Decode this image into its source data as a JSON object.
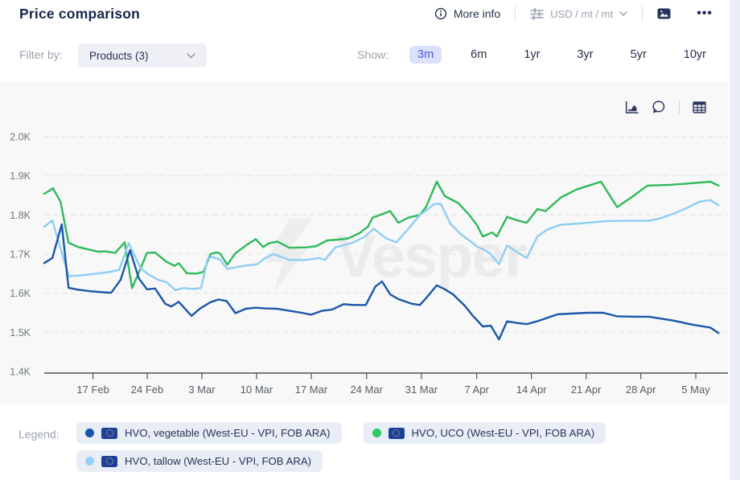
{
  "header": {
    "title": "Price comparison",
    "more_info_label": "More info",
    "unit_selector_label": "USD / mt / mt"
  },
  "filter": {
    "label": "Filter by:",
    "products_dropdown_label": "Products (3)"
  },
  "show": {
    "label": "Show:",
    "options": [
      "3m",
      "6m",
      "1yr",
      "3yr",
      "5yr",
      "10yr"
    ],
    "selected": "3m",
    "active_bg": "#dce1fb",
    "active_text": "#4b5bd7"
  },
  "watermark_text": "Vesper",
  "legend": {
    "label": "Legend:",
    "items": [
      {
        "label": "HVO, vegetable (West-EU - VPI, FOB ARA)",
        "dot_color": "#1656a8"
      },
      {
        "label": "HVO, UCO (West-EU - VPI, FOB ARA)",
        "dot_color": "#2ecc5e"
      },
      {
        "label": "HVO, tallow (West-EU - VPI, FOB ARA)",
        "dot_color": "#93d2f3"
      }
    ]
  },
  "chart_data": {
    "type": "line",
    "unit": "USD / mt / mt",
    "ylim": [
      1400,
      2000
    ],
    "grid": "horizontal-dashed",
    "legend_position": "bottom",
    "y_ticks": [
      {
        "label": "2.0K",
        "value": 2000
      },
      {
        "label": "1.9K",
        "value": 1900
      },
      {
        "label": "1.8K",
        "value": 1800
      },
      {
        "label": "1.7K",
        "value": 1700
      },
      {
        "label": "1.6K",
        "value": 1600
      },
      {
        "label": "1.5K",
        "value": 1500
      },
      {
        "label": "1.4K",
        "value": 1400
      }
    ],
    "x_ticks": [
      {
        "label": "17 Feb",
        "f": 0.0722
      },
      {
        "label": "24 Feb",
        "f": 0.1524
      },
      {
        "label": "3 Mar",
        "f": 0.2333
      },
      {
        "label": "10 Mar",
        "f": 0.3143
      },
      {
        "label": "17 Mar",
        "f": 0.3952
      },
      {
        "label": "24 Mar",
        "f": 0.477
      },
      {
        "label": "31 Mar",
        "f": 0.5583
      },
      {
        "label": "7 Apr",
        "f": 0.6401
      },
      {
        "label": "14 Apr",
        "f": 0.7211
      },
      {
        "label": "21 Apr",
        "f": 0.802
      },
      {
        "label": "28 Apr",
        "f": 0.883
      },
      {
        "label": "5 May",
        "f": 0.9643
      }
    ],
    "series": [
      {
        "name": "HVO, vegetable (West-EU - VPI, FOB ARA)",
        "color": "#1a56a8",
        "points": [
          [
            0.0,
            1677
          ],
          [
            0.012,
            1690
          ],
          [
            0.026,
            1776
          ],
          [
            0.036,
            1614
          ],
          [
            0.05,
            1609
          ],
          [
            0.068,
            1605
          ],
          [
            0.083,
            1603
          ],
          [
            0.099,
            1601
          ],
          [
            0.113,
            1634
          ],
          [
            0.127,
            1710
          ],
          [
            0.14,
            1638
          ],
          [
            0.152,
            1610
          ],
          [
            0.164,
            1612
          ],
          [
            0.179,
            1573
          ],
          [
            0.188,
            1566
          ],
          [
            0.199,
            1578
          ],
          [
            0.218,
            1542
          ],
          [
            0.23,
            1560
          ],
          [
            0.246,
            1577
          ],
          [
            0.258,
            1584
          ],
          [
            0.27,
            1580
          ],
          [
            0.283,
            1549
          ],
          [
            0.298,
            1560
          ],
          [
            0.313,
            1563
          ],
          [
            0.327,
            1561
          ],
          [
            0.345,
            1560
          ],
          [
            0.363,
            1555
          ],
          [
            0.381,
            1550
          ],
          [
            0.395,
            1545
          ],
          [
            0.411,
            1555
          ],
          [
            0.426,
            1558
          ],
          [
            0.443,
            1572
          ],
          [
            0.458,
            1570
          ],
          [
            0.476,
            1570
          ],
          [
            0.49,
            1617
          ],
          [
            0.5,
            1630
          ],
          [
            0.512,
            1597
          ],
          [
            0.524,
            1585
          ],
          [
            0.544,
            1573
          ],
          [
            0.556,
            1570
          ],
          [
            0.565,
            1587
          ],
          [
            0.581,
            1620
          ],
          [
            0.593,
            1610
          ],
          [
            0.605,
            1597
          ],
          [
            0.623,
            1567
          ],
          [
            0.633,
            1545
          ],
          [
            0.649,
            1515
          ],
          [
            0.661,
            1517
          ],
          [
            0.673,
            1482
          ],
          [
            0.685,
            1528
          ],
          [
            0.7,
            1524
          ],
          [
            0.714,
            1521
          ],
          [
            0.729,
            1528
          ],
          [
            0.76,
            1546
          ],
          [
            0.78,
            1548
          ],
          [
            0.804,
            1550
          ],
          [
            0.827,
            1550
          ],
          [
            0.848,
            1541
          ],
          [
            0.875,
            1540
          ],
          [
            0.895,
            1540
          ],
          [
            0.931,
            1530
          ],
          [
            0.958,
            1520
          ],
          [
            0.986,
            1512
          ],
          [
            0.998,
            1498
          ]
        ]
      },
      {
        "name": "HVO, tallow (West-EU - VPI, FOB ARA)",
        "color": "#8ecdf2",
        "points": [
          [
            0.0,
            1770
          ],
          [
            0.012,
            1786
          ],
          [
            0.024,
            1715
          ],
          [
            0.036,
            1644
          ],
          [
            0.051,
            1645
          ],
          [
            0.068,
            1648
          ],
          [
            0.083,
            1651
          ],
          [
            0.099,
            1655
          ],
          [
            0.111,
            1660
          ],
          [
            0.125,
            1728
          ],
          [
            0.143,
            1663
          ],
          [
            0.155,
            1647
          ],
          [
            0.169,
            1634
          ],
          [
            0.181,
            1628
          ],
          [
            0.194,
            1608
          ],
          [
            0.206,
            1613
          ],
          [
            0.22,
            1611
          ],
          [
            0.232,
            1613
          ],
          [
            0.242,
            1688
          ],
          [
            0.248,
            1693
          ],
          [
            0.26,
            1686
          ],
          [
            0.271,
            1662
          ],
          [
            0.283,
            1666
          ],
          [
            0.3,
            1671
          ],
          [
            0.315,
            1674
          ],
          [
            0.327,
            1690
          ],
          [
            0.339,
            1700
          ],
          [
            0.363,
            1685
          ],
          [
            0.387,
            1685
          ],
          [
            0.407,
            1690
          ],
          [
            0.415,
            1685
          ],
          [
            0.431,
            1717
          ],
          [
            0.458,
            1730
          ],
          [
            0.474,
            1744
          ],
          [
            0.488,
            1765
          ],
          [
            0.506,
            1740
          ],
          [
            0.521,
            1730
          ],
          [
            0.539,
            1765
          ],
          [
            0.556,
            1800
          ],
          [
            0.568,
            1815
          ],
          [
            0.577,
            1828
          ],
          [
            0.587,
            1828
          ],
          [
            0.601,
            1778
          ],
          [
            0.617,
            1750
          ],
          [
            0.629,
            1735
          ],
          [
            0.64,
            1720
          ],
          [
            0.652,
            1710
          ],
          [
            0.661,
            1700
          ],
          [
            0.673,
            1674
          ],
          [
            0.685,
            1722
          ],
          [
            0.7,
            1705
          ],
          [
            0.714,
            1690
          ],
          [
            0.73,
            1745
          ],
          [
            0.744,
            1762
          ],
          [
            0.764,
            1775
          ],
          [
            0.792,
            1778
          ],
          [
            0.831,
            1784
          ],
          [
            0.863,
            1785
          ],
          [
            0.895,
            1785
          ],
          [
            0.911,
            1791
          ],
          [
            0.931,
            1803
          ],
          [
            0.95,
            1817
          ],
          [
            0.97,
            1834
          ],
          [
            0.986,
            1838
          ],
          [
            0.998,
            1825
          ]
        ]
      },
      {
        "name": "HVO, UCO (West-EU - VPI, FOB ARA)",
        "color": "#30b95c",
        "points": [
          [
            0.0,
            1854
          ],
          [
            0.013,
            1868
          ],
          [
            0.024,
            1834
          ],
          [
            0.036,
            1729
          ],
          [
            0.05,
            1718
          ],
          [
            0.065,
            1712
          ],
          [
            0.08,
            1706
          ],
          [
            0.09,
            1707
          ],
          [
            0.105,
            1703
          ],
          [
            0.119,
            1730
          ],
          [
            0.13,
            1613
          ],
          [
            0.143,
            1665
          ],
          [
            0.152,
            1703
          ],
          [
            0.164,
            1704
          ],
          [
            0.181,
            1680
          ],
          [
            0.193,
            1670
          ],
          [
            0.199,
            1677
          ],
          [
            0.211,
            1651
          ],
          [
            0.226,
            1650
          ],
          [
            0.236,
            1655
          ],
          [
            0.246,
            1700
          ],
          [
            0.254,
            1704
          ],
          [
            0.26,
            1702
          ],
          [
            0.271,
            1673
          ],
          [
            0.283,
            1702
          ],
          [
            0.3,
            1724
          ],
          [
            0.313,
            1738
          ],
          [
            0.324,
            1718
          ],
          [
            0.333,
            1728
          ],
          [
            0.345,
            1732
          ],
          [
            0.363,
            1716
          ],
          [
            0.387,
            1717
          ],
          [
            0.402,
            1720
          ],
          [
            0.419,
            1735
          ],
          [
            0.435,
            1737
          ],
          [
            0.45,
            1740
          ],
          [
            0.467,
            1754
          ],
          [
            0.479,
            1770
          ],
          [
            0.486,
            1793
          ],
          [
            0.5,
            1802
          ],
          [
            0.512,
            1810
          ],
          [
            0.524,
            1780
          ],
          [
            0.539,
            1793
          ],
          [
            0.556,
            1800
          ],
          [
            0.565,
            1820
          ],
          [
            0.581,
            1885
          ],
          [
            0.593,
            1848
          ],
          [
            0.613,
            1830
          ],
          [
            0.629,
            1800
          ],
          [
            0.64,
            1775
          ],
          [
            0.649,
            1745
          ],
          [
            0.663,
            1755
          ],
          [
            0.67,
            1745
          ],
          [
            0.685,
            1795
          ],
          [
            0.702,
            1785
          ],
          [
            0.714,
            1780
          ],
          [
            0.73,
            1815
          ],
          [
            0.742,
            1810
          ],
          [
            0.765,
            1845
          ],
          [
            0.788,
            1865
          ],
          [
            0.806,
            1875
          ],
          [
            0.824,
            1885
          ],
          [
            0.848,
            1820
          ],
          [
            0.869,
            1845
          ],
          [
            0.893,
            1875
          ],
          [
            0.926,
            1877
          ],
          [
            0.95,
            1880
          ],
          [
            0.986,
            1885
          ],
          [
            0.998,
            1875
          ]
        ]
      }
    ]
  }
}
